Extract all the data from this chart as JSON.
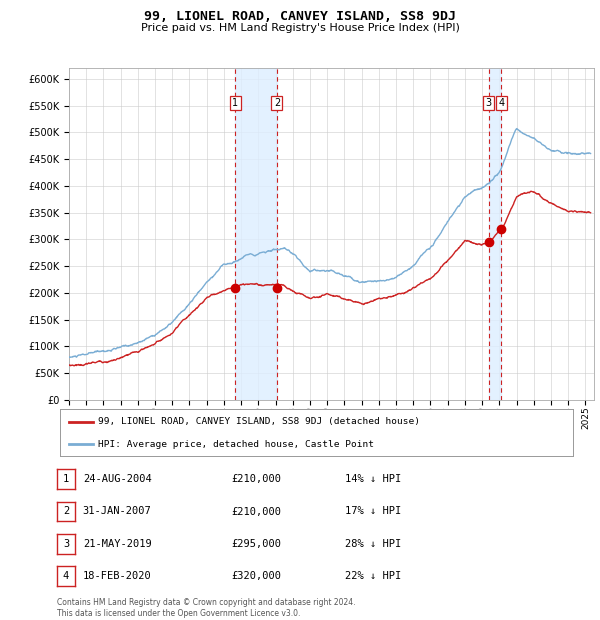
{
  "title": "99, LIONEL ROAD, CANVEY ISLAND, SS8 9DJ",
  "subtitle": "Price paid vs. HM Land Registry's House Price Index (HPI)",
  "title_fontsize": 9.5,
  "subtitle_fontsize": 8,
  "ylabel_ticks": [
    "£0",
    "£50K",
    "£100K",
    "£150K",
    "£200K",
    "£250K",
    "£300K",
    "£350K",
    "£400K",
    "£450K",
    "£500K",
    "£550K",
    "£600K"
  ],
  "ytick_values": [
    0,
    50000,
    100000,
    150000,
    200000,
    250000,
    300000,
    350000,
    400000,
    450000,
    500000,
    550000,
    600000
  ],
  "ylim": [
    0,
    620000
  ],
  "xlim_start": 1995.0,
  "xlim_end": 2025.5,
  "background_color": "#ffffff",
  "grid_color": "#cccccc",
  "hpi_line_color": "#7aadd4",
  "price_line_color": "#cc2222",
  "sale_marker_color": "#cc0000",
  "vline_color": "#cc2222",
  "shade_color": "#ddeeff",
  "legend_line_color": "#cc2222",
  "legend_hpi_color": "#7aadd4",
  "sales": [
    {
      "label": "1",
      "date_num": 2004.65,
      "price": 210000
    },
    {
      "label": "2",
      "date_num": 2007.08,
      "price": 210000
    },
    {
      "label": "3",
      "date_num": 2019.39,
      "price": 295000
    },
    {
      "label": "4",
      "date_num": 2020.12,
      "price": 320000
    }
  ],
  "legend_entries": [
    "99, LIONEL ROAD, CANVEY ISLAND, SS8 9DJ (detached house)",
    "HPI: Average price, detached house, Castle Point"
  ],
  "table_entries": [
    {
      "num": "1",
      "date": "24-AUG-2004",
      "price": "£210,000",
      "note": "14% ↓ HPI"
    },
    {
      "num": "2",
      "date": "31-JAN-2007",
      "price": "£210,000",
      "note": "17% ↓ HPI"
    },
    {
      "num": "3",
      "date": "21-MAY-2019",
      "price": "£295,000",
      "note": "28% ↓ HPI"
    },
    {
      "num": "4",
      "date": "18-FEB-2020",
      "price": "£320,000",
      "note": "22% ↓ HPI"
    }
  ],
  "footnote": "Contains HM Land Registry data © Crown copyright and database right 2024.\nThis data is licensed under the Open Government Licence v3.0.",
  "footnote_fontsize": 5.5
}
